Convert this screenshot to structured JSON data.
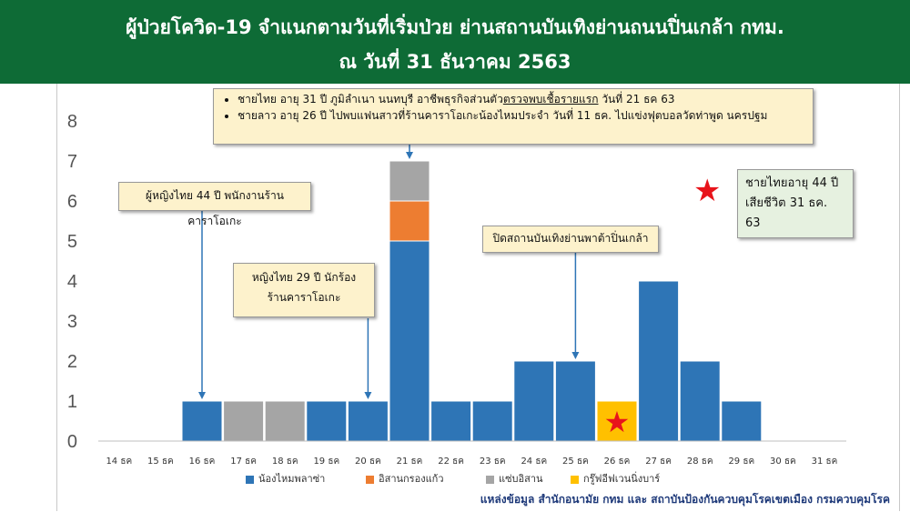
{
  "header": {
    "title_line1": "ผู้ป่วยโควิด-19 จำแนกตามวันที่เริ่มป่วย ย่านสถานบันเทิงย่านถนนปิ่นเกล้า กทม.",
    "title_line2": "ณ วันที่ 31 ธันวาคม 2563"
  },
  "callouts": {
    "top": {
      "item1_pre": "ชายไทย อายุ  31 ปี ภูมิลำเนา นนทบุรี  อาชีพธุรกิจส่วนตัว",
      "item1_underline": "ตรวจพบเชื้อรายแรก",
      "item1_post": " วันที่ 21 ธค 63",
      "item2": "ชายลาว อายุ 26 ปี ไปพบแฟนสาวที่ร้านคาราโอเกะน้องไหมประจำ วันที่ 11 ธค. ไปแข่งฟุตบอลวัดท่าพูด นครปฐม"
    },
    "left": "ผู้หญิงไทย 44  ปี พนักงานร้านคาราโอเกะ",
    "mid_line1": "หญิงไทย 29 ปี นักร้อง",
    "mid_line2": "ร้านคาราโอเกะ",
    "close": "ปิดสถานบันเทิงย่านพาต้าปิ่นเกล้า",
    "death_line1": "ชายไทยอายุ 44 ปี",
    "death_line2": "เสียชีวิต 31 ธค. 63"
  },
  "source": "แหล่งข้อมูล สำนักอนามัย กทม และ สถาบันป้องกันควบคุมโรคเขตเมือง กรมควบคุมโรค",
  "icons": {
    "star": "star-icon",
    "star_char": "★"
  },
  "colors": {
    "header_bg": "#0e6b36",
    "series": [
      "#2e75b6",
      "#ed7d31",
      "#a5a5a5",
      "#ffc000"
    ]
  },
  "chart_data": {
    "type": "bar",
    "stacked": true,
    "categories": [
      "14 ธค",
      "15  ธค",
      "16 ธค",
      "17 ธค",
      "18 ธค",
      "19  ธค",
      "20 ธค",
      "21 ธค",
      "22 ธค",
      "23  ธค",
      "24 ธค",
      "25 ธค",
      "26 ธค",
      "27 ธค",
      "28 ธค",
      "29 ธค",
      "30  ธค",
      "31 ธค"
    ],
    "series": [
      {
        "name": "น้องไหมพลาซ่า",
        "values": [
          0,
          0,
          1,
          0,
          0,
          1,
          1,
          5,
          1,
          1,
          2,
          2,
          0,
          4,
          2,
          1,
          0,
          0
        ]
      },
      {
        "name": "อิสานกรองแก้ว",
        "values": [
          0,
          0,
          0,
          0,
          0,
          0,
          0,
          1,
          0,
          0,
          0,
          0,
          0,
          0,
          0,
          0,
          0,
          0
        ]
      },
      {
        "name": "แซ่บอิสาน",
        "values": [
          0,
          0,
          0,
          1,
          1,
          0,
          0,
          1,
          0,
          0,
          0,
          0,
          0,
          0,
          0,
          0,
          0,
          0
        ]
      },
      {
        "name": "กรู๊ฟอีฟเวนนิ่งบาร์",
        "values": [
          0,
          0,
          0,
          0,
          0,
          0,
          0,
          0,
          0,
          0,
          0,
          0,
          1,
          0,
          0,
          0,
          0,
          0
        ]
      }
    ],
    "ylim": [
      0,
      8
    ],
    "yticks": [
      "0",
      "1",
      "2",
      "3",
      "4",
      "5",
      "6",
      "7",
      "8"
    ],
    "grid": false,
    "legend_position": "bottom"
  }
}
